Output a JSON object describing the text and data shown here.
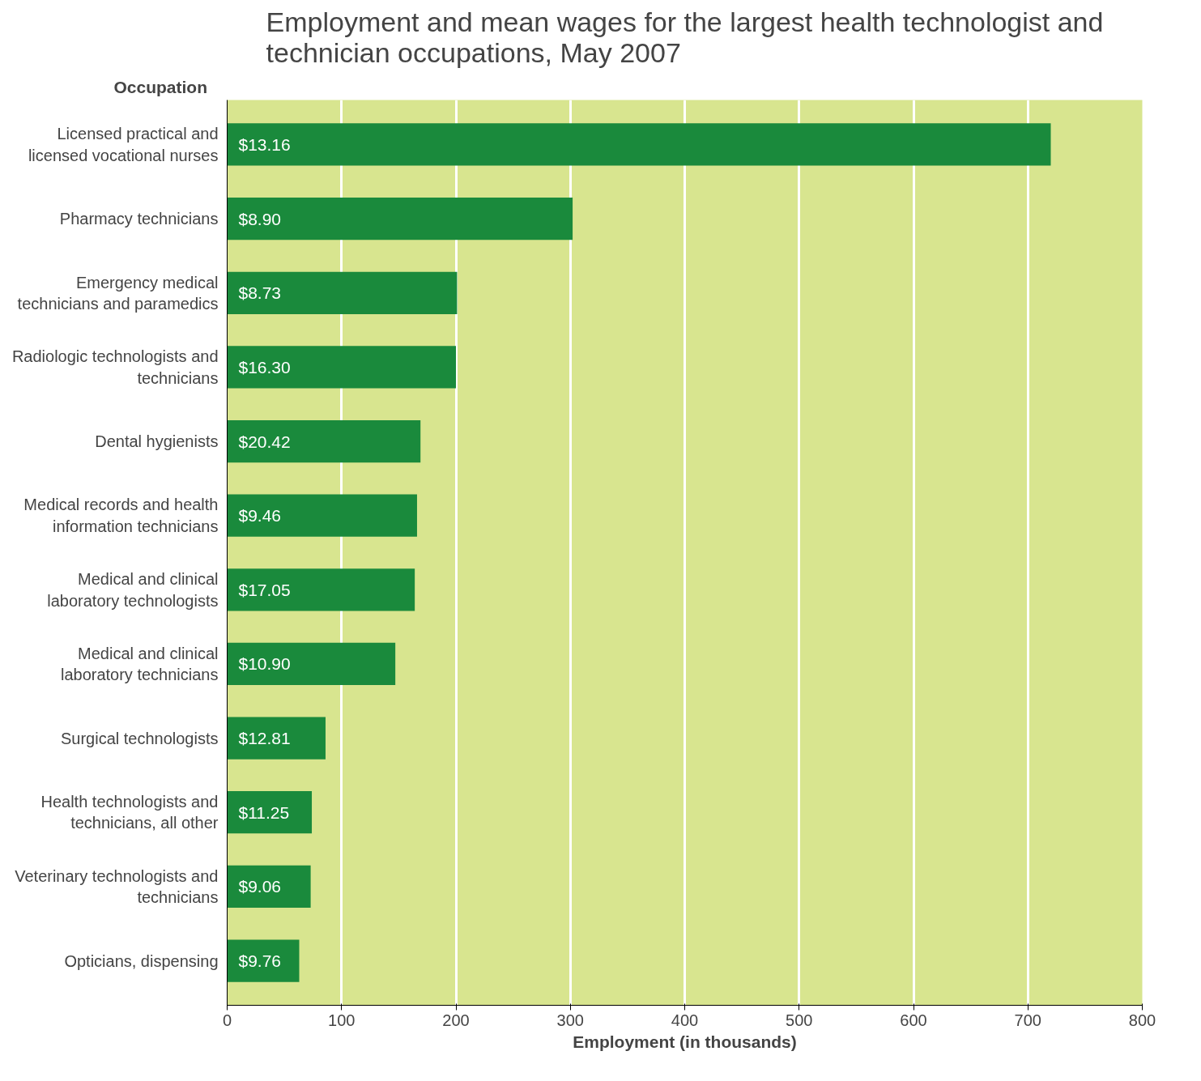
{
  "chart_data": {
    "type": "bar",
    "orientation": "horizontal",
    "title": "Employment and mean wages for the largest health technologist and\ntechnician occupations, May 2007",
    "ylabel": "Occupation",
    "xlabel": "Employment (in thousands)",
    "categories": [
      "Licensed practical and licensed vocational nurses",
      "Pharmacy technicians",
      "Emergency medical technicians and paramedics",
      "Radiologic technologists and technicians",
      "Dental hygienists",
      "Medical records and health information technicians",
      "Medical and clinical laboratory technologists",
      "Medical and clinical laboratory technicians",
      "Surgical technologists",
      "Health technologists and technicians, all other",
      "Veterinary technologists and technicians",
      "Opticians, dispensing"
    ],
    "values": [
      720,
      302,
      201,
      200,
      169,
      166,
      164,
      147,
      86,
      74,
      73,
      63
    ],
    "annotations": [
      "$13.16",
      "$8.90",
      "$8.73",
      "$16.30",
      "$20.42",
      "$9.46",
      "$17.05",
      "$10.90",
      "$12.81",
      "$11.25",
      "$9.06",
      "$9.76"
    ],
    "color": "#1a8a3c",
    "xlim": [
      0,
      800
    ],
    "xticks": [
      0,
      100,
      200,
      300,
      400,
      500,
      600,
      700,
      800
    ],
    "grid": "x"
  }
}
